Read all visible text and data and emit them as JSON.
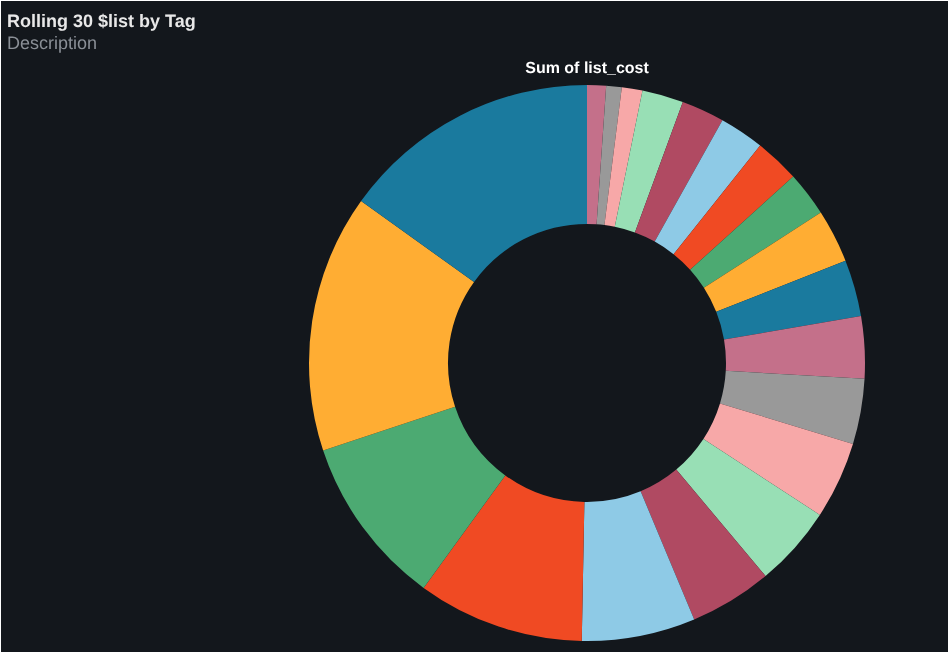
{
  "chart_data": {
    "type": "donut",
    "title": "Rolling 30 $list by Tag",
    "subtitle": "Description",
    "annotations": [
      "Sum of list_cost"
    ],
    "categories": [
      null,
      null,
      null,
      null,
      null,
      null,
      null,
      null,
      null,
      null,
      null,
      null,
      null,
      null,
      null,
      null,
      null,
      null,
      null,
      null
    ],
    "values": [
      1.1,
      0.9,
      1.2,
      2.4,
      2.5,
      2.6,
      2.6,
      2.6,
      3.1,
      3.3,
      3.6,
      3.8,
      4.5,
      4.7,
      4.8,
      6.6,
      9.7,
      9.9,
      15.0,
      15.1
    ],
    "colors": [
      "#c4708a",
      "#999999",
      "#f7a8a8",
      "#98dfb5",
      "#b04a62",
      "#8ecae6",
      "#f04a23",
      "#4caa72",
      "#ffad33",
      "#1a7a9e",
      "#c4708a",
      "#999999",
      "#f7a8a8",
      "#98dfb5",
      "#b04a62",
      "#8ecae6",
      "#f04a23",
      "#4caa72",
      "#ffad33",
      "#1a7a9e"
    ]
  }
}
